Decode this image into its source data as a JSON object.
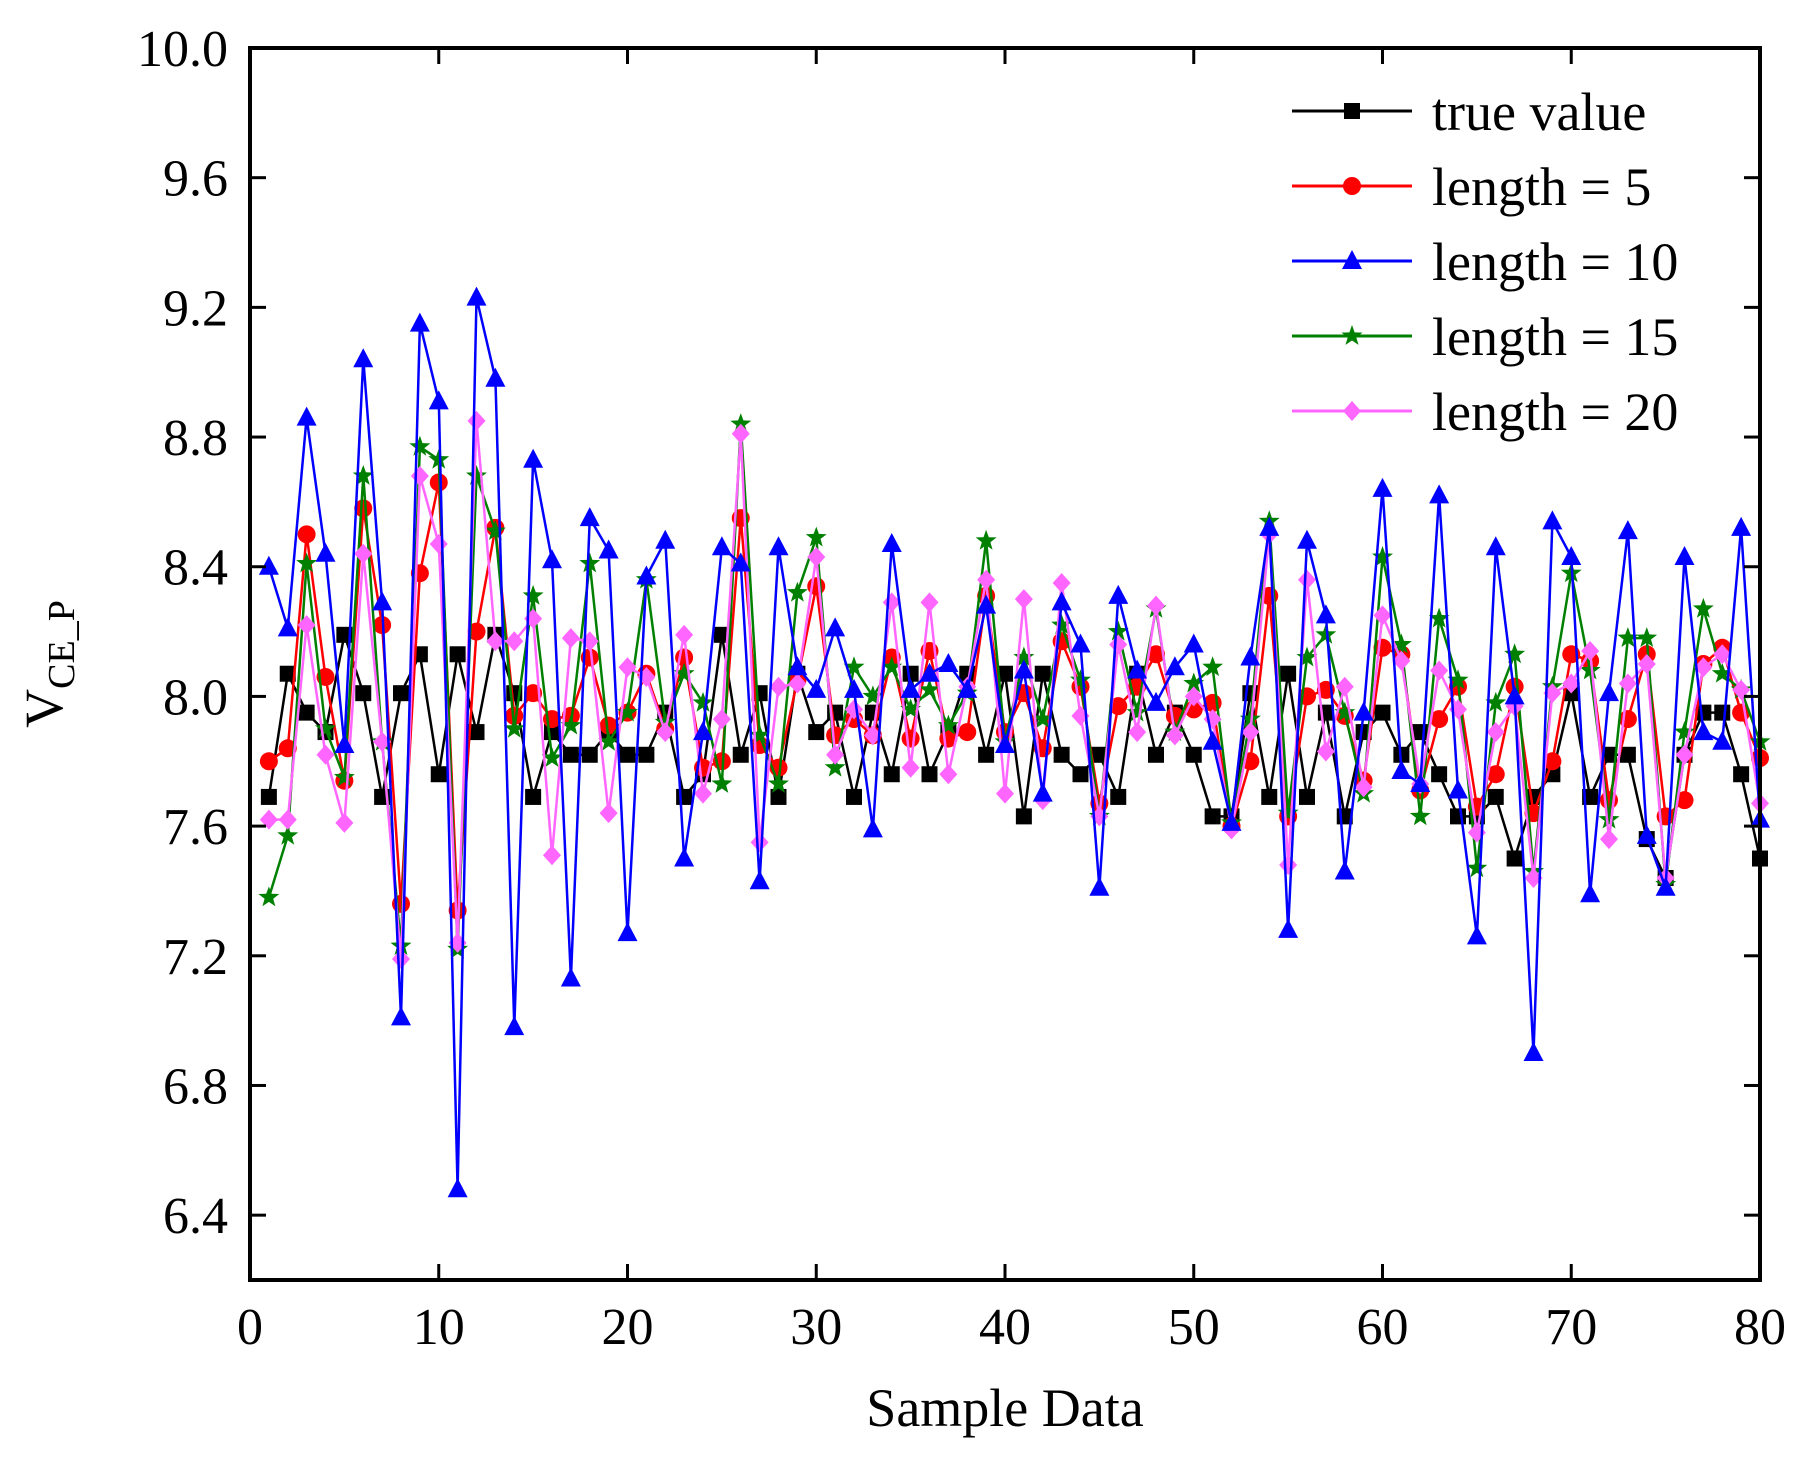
{
  "chart_data": {
    "type": "line",
    "title": "",
    "xlabel": "Sample Data",
    "ylabel": "V",
    "ylabel_subscript": "CE_P",
    "xlim": [
      0,
      80
    ],
    "ylim": [
      6.2,
      10.0
    ],
    "xticks": [
      0,
      10,
      20,
      30,
      40,
      50,
      60,
      70,
      80
    ],
    "yticks": [
      6.4,
      6.8,
      7.2,
      7.6,
      8.0,
      8.4,
      8.8,
      9.2,
      9.6,
      10.0
    ],
    "xtick_labels": [
      "0",
      "10",
      "20",
      "30",
      "40",
      "50",
      "60",
      "70",
      "80"
    ],
    "ytick_labels": [
      "6.4",
      "6.8",
      "7.2",
      "7.6",
      "8.0",
      "8.4",
      "8.8",
      "9.2",
      "9.6",
      "10.0"
    ],
    "grid": false,
    "legend_position": "top-right",
    "x": [
      1,
      2,
      3,
      4,
      5,
      6,
      7,
      8,
      9,
      10,
      11,
      12,
      13,
      14,
      15,
      16,
      17,
      18,
      19,
      20,
      21,
      22,
      23,
      24,
      25,
      26,
      27,
      28,
      29,
      30,
      31,
      32,
      33,
      34,
      35,
      36,
      37,
      38,
      39,
      40,
      41,
      42,
      43,
      44,
      45,
      46,
      47,
      48,
      49,
      50,
      51,
      52,
      53,
      54,
      55,
      56,
      57,
      58,
      59,
      60,
      61,
      62,
      63,
      64,
      65,
      66,
      67,
      68,
      69,
      70,
      71,
      72,
      73,
      74,
      75,
      76,
      77,
      78,
      79,
      80
    ],
    "series": [
      {
        "name": "true value",
        "color": "#000000",
        "marker": "square",
        "values": [
          7.69,
          8.07,
          7.95,
          7.89,
          8.19,
          8.01,
          7.69,
          8.01,
          8.13,
          7.76,
          8.13,
          7.89,
          8.19,
          8.01,
          7.69,
          7.89,
          7.82,
          7.82,
          7.89,
          7.82,
          7.82,
          7.95,
          7.69,
          7.76,
          8.19,
          7.82,
          8.01,
          7.69,
          8.07,
          7.89,
          7.95,
          7.69,
          7.95,
          7.76,
          8.07,
          7.76,
          7.89,
          8.07,
          7.82,
          8.07,
          7.63,
          8.07,
          7.82,
          7.76,
          7.82,
          7.69,
          8.07,
          7.82,
          7.95,
          7.82,
          7.63,
          7.63,
          8.01,
          7.69,
          8.07,
          7.69,
          7.95,
          7.63,
          7.89,
          7.95,
          7.82,
          7.89,
          7.76,
          7.63,
          7.63,
          7.69,
          7.5,
          7.69,
          7.76,
          8.01,
          7.69,
          7.82,
          7.82,
          7.56,
          7.44,
          7.82,
          7.95,
          7.95,
          7.76,
          7.5
        ]
      },
      {
        "name": "length = 5",
        "color": "#ff0000",
        "marker": "circle",
        "values": [
          7.8,
          7.84,
          8.5,
          8.06,
          7.74,
          8.58,
          8.22,
          7.36,
          8.38,
          8.66,
          7.34,
          8.2,
          8.52,
          7.94,
          8.01,
          7.93,
          7.94,
          8.12,
          7.91,
          7.95,
          8.07,
          7.9,
          8.12,
          7.78,
          7.8,
          8.55,
          7.85,
          7.78,
          8.05,
          8.34,
          7.88,
          7.93,
          7.88,
          8.12,
          7.87,
          8.14,
          7.87,
          7.89,
          8.31,
          7.89,
          8.01,
          7.84,
          8.17,
          8.03,
          7.67,
          7.97,
          8.03,
          8.13,
          7.94,
          7.96,
          7.98,
          7.6,
          7.8,
          8.31,
          7.63,
          8.0,
          8.02,
          7.94,
          7.74,
          8.15,
          8.13,
          7.71,
          7.93,
          8.03,
          7.66,
          7.76,
          8.03,
          7.64,
          7.8,
          8.13,
          8.11,
          7.68,
          7.93,
          8.13,
          7.63,
          7.68,
          8.1,
          8.15,
          7.95,
          7.81
        ]
      },
      {
        "name": "length = 10",
        "color": "#0000ff",
        "marker": "triangle",
        "values": [
          8.4,
          8.21,
          8.86,
          8.44,
          7.85,
          9.04,
          8.29,
          7.01,
          9.15,
          8.91,
          6.48,
          9.23,
          8.98,
          6.98,
          8.73,
          8.42,
          7.13,
          8.55,
          8.45,
          7.27,
          8.37,
          8.48,
          7.5,
          7.89,
          8.46,
          8.41,
          7.43,
          8.46,
          8.09,
          8.02,
          8.21,
          8.02,
          7.59,
          8.47,
          8.02,
          8.07,
          8.1,
          8.02,
          8.28,
          7.85,
          8.08,
          7.7,
          8.29,
          8.16,
          7.41,
          8.31,
          8.08,
          7.98,
          8.09,
          8.16,
          7.86,
          7.61,
          8.12,
          8.52,
          7.28,
          8.48,
          8.25,
          7.46,
          7.95,
          8.64,
          7.77,
          7.73,
          8.62,
          7.71,
          7.26,
          8.46,
          8.0,
          6.9,
          8.54,
          8.43,
          7.39,
          8.01,
          8.51,
          7.57,
          7.41,
          8.43,
          7.89,
          7.86,
          8.52,
          7.62
        ]
      },
      {
        "name": "length = 15",
        "color": "#008000",
        "marker": "star",
        "values": [
          7.38,
          7.57,
          8.41,
          7.9,
          7.75,
          8.68,
          7.86,
          7.23,
          8.77,
          8.73,
          7.22,
          8.68,
          8.51,
          7.9,
          8.31,
          7.81,
          7.91,
          8.41,
          7.86,
          7.95,
          8.36,
          7.92,
          8.07,
          7.98,
          7.73,
          8.84,
          7.88,
          7.73,
          8.32,
          8.49,
          7.78,
          8.09,
          8.0,
          8.09,
          7.96,
          8.02,
          7.91,
          8.01,
          8.48,
          7.86,
          8.12,
          7.93,
          8.22,
          8.05,
          7.63,
          8.2,
          7.95,
          8.27,
          7.89,
          8.04,
          8.09,
          7.61,
          7.93,
          8.54,
          7.64,
          8.12,
          8.19,
          7.95,
          7.7,
          8.43,
          8.16,
          7.63,
          8.24,
          8.05,
          7.47,
          7.98,
          8.13,
          7.46,
          8.03,
          8.38,
          8.08,
          7.62,
          8.18,
          8.18,
          7.42,
          7.89,
          8.27,
          8.07,
          8.02,
          7.86
        ]
      },
      {
        "name": "length = 20",
        "color": "#ff66ff",
        "marker": "diamond",
        "values": [
          7.62,
          7.62,
          8.22,
          7.82,
          7.61,
          8.44,
          7.86,
          7.19,
          8.68,
          8.47,
          7.24,
          8.85,
          8.17,
          8.17,
          8.24,
          7.51,
          8.18,
          8.17,
          7.64,
          8.09,
          8.06,
          7.89,
          8.19,
          7.7,
          7.93,
          8.81,
          7.55,
          8.03,
          8.04,
          8.43,
          7.82,
          7.96,
          7.88,
          8.29,
          7.78,
          8.29,
          7.76,
          8.03,
          8.36,
          7.7,
          8.3,
          7.68,
          8.35,
          7.94,
          7.63,
          8.16,
          7.89,
          8.28,
          7.88,
          8.0,
          7.93,
          7.59,
          7.89,
          8.5,
          7.48,
          8.36,
          7.83,
          8.03,
          7.72,
          8.25,
          8.11,
          7.73,
          8.08,
          7.96,
          7.58,
          7.89,
          7.97,
          7.44,
          8.01,
          8.04,
          8.14,
          7.56,
          8.04,
          8.1,
          7.44,
          7.82,
          8.09,
          8.13,
          8.02,
          7.67
        ]
      }
    ]
  }
}
